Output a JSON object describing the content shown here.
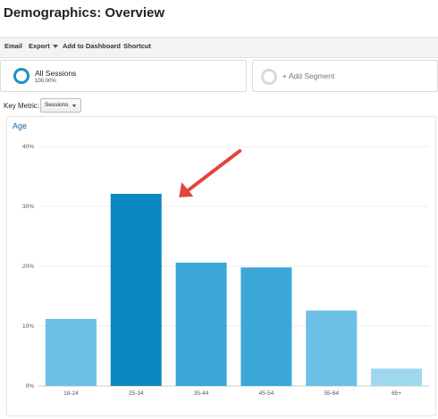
{
  "header": {
    "title": "Demographics: Overview"
  },
  "toolbar": {
    "email": "Email",
    "export": "Export",
    "add_to_dashboard": "Add to Dashboard",
    "shortcut": "Shortcut"
  },
  "segments": {
    "active": {
      "name": "All Sessions",
      "percent": "100.00%"
    },
    "add_label": "+ Add Segment"
  },
  "key_metric": {
    "label": "Key Metric:",
    "selected": "Sessions"
  },
  "colors": {
    "accent": "#1e8fc6",
    "bar_highlight": "#0b88c4",
    "bar_light": "#6dc1e6",
    "title_blue": "#1565a8",
    "arrow": "#e0463d"
  },
  "chart_data": {
    "type": "bar",
    "title": "Age",
    "categories": [
      "18-24",
      "25-34",
      "35-44",
      "45-54",
      "55-64",
      "65+"
    ],
    "values": [
      11.2,
      32.1,
      20.6,
      19.8,
      12.6,
      2.9
    ],
    "y_ticks": [
      "0%",
      "10%",
      "20%",
      "30%",
      "40%"
    ],
    "ylim": [
      0,
      40
    ],
    "grid": true,
    "highlighted_category": "25-34"
  }
}
